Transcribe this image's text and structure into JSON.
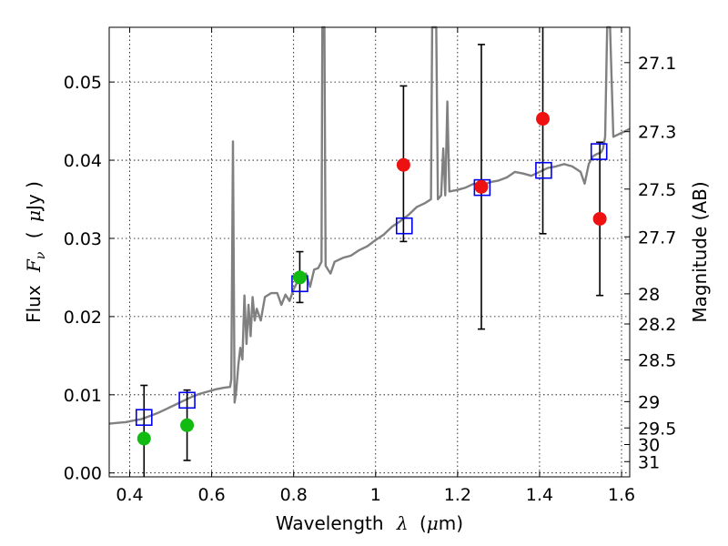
{
  "chart_data": {
    "type": "scatter",
    "xlabel_prefix": "Wavelength",
    "xlabel_symbol": "λ",
    "xlabel_open": "(",
    "xlabel_unit_symbol": "μ",
    "xlabel_unit": "m)",
    "ylabel_prefix": "Flux",
    "ylabel_symbol": "F",
    "ylabel_subscript": "ν",
    "ylabel_open": "(",
    "ylabel_unit_symbol": "μ",
    "ylabel_unit": "Jy )",
    "y2label": "Magnitude (AB)",
    "xlim": [
      0.35,
      1.62
    ],
    "ylim": [
      -0.0005,
      0.057
    ],
    "grid": true,
    "x_ticks": [
      0.4,
      0.6,
      0.8,
      1.0,
      1.2,
      1.4,
      1.6
    ],
    "x_tick_labels": [
      "0.4",
      "0.6",
      "0.8",
      "1",
      "1.2",
      "1.4",
      "1.6"
    ],
    "y_ticks": [
      0.0,
      0.01,
      0.02,
      0.03,
      0.04,
      0.05
    ],
    "y_tick_labels": [
      "0.00",
      "0.01",
      "0.02",
      "0.03",
      "0.04",
      "0.05"
    ],
    "mag_ticks": [
      "27.1",
      "27.3",
      "27.5",
      "27.7",
      "28",
      "28.2",
      "28.5",
      "29",
      "29.5",
      "30",
      "31"
    ],
    "colors": {
      "spectrum": "#808080",
      "model_box": "#0000ee",
      "detect": "#ee1111",
      "optical": "#11bb11",
      "errorbar": "#000000"
    },
    "spectrum": [
      [
        0.35,
        0.0063
      ],
      [
        0.37,
        0.0064
      ],
      [
        0.39,
        0.0065
      ],
      [
        0.41,
        0.0067
      ],
      [
        0.43,
        0.0069
      ],
      [
        0.45,
        0.0073
      ],
      [
        0.47,
        0.0077
      ],
      [
        0.49,
        0.0082
      ],
      [
        0.51,
        0.0087
      ],
      [
        0.53,
        0.0092
      ],
      [
        0.55,
        0.0097
      ],
      [
        0.57,
        0.0101
      ],
      [
        0.59,
        0.0104
      ],
      [
        0.61,
        0.0107
      ],
      [
        0.63,
        0.0109
      ],
      [
        0.645,
        0.011
      ],
      [
        0.648,
        0.012
      ],
      [
        0.652,
        0.0424
      ],
      [
        0.656,
        0.009
      ],
      [
        0.66,
        0.0105
      ],
      [
        0.665,
        0.0138
      ],
      [
        0.67,
        0.016
      ],
      [
        0.675,
        0.0145
      ],
      [
        0.68,
        0.0227
      ],
      [
        0.685,
        0.0165
      ],
      [
        0.69,
        0.0215
      ],
      [
        0.695,
        0.0175
      ],
      [
        0.7,
        0.0225
      ],
      [
        0.705,
        0.0195
      ],
      [
        0.71,
        0.021
      ],
      [
        0.72,
        0.0195
      ],
      [
        0.73,
        0.0225
      ],
      [
        0.745,
        0.023
      ],
      [
        0.76,
        0.023
      ],
      [
        0.77,
        0.0215
      ],
      [
        0.78,
        0.0228
      ],
      [
        0.79,
        0.022
      ],
      [
        0.8,
        0.0235
      ],
      [
        0.81,
        0.0245
      ],
      [
        0.82,
        0.025
      ],
      [
        0.83,
        0.0255
      ],
      [
        0.84,
        0.0238
      ],
      [
        0.85,
        0.026
      ],
      [
        0.86,
        0.0262
      ],
      [
        0.868,
        0.027
      ],
      [
        0.87,
        0.057
      ],
      [
        0.875,
        0.057
      ],
      [
        0.878,
        0.0265
      ],
      [
        0.89,
        0.0255
      ],
      [
        0.9,
        0.027
      ],
      [
        0.92,
        0.0275
      ],
      [
        0.94,
        0.0278
      ],
      [
        0.96,
        0.0285
      ],
      [
        0.98,
        0.029
      ],
      [
        1.0,
        0.0298
      ],
      [
        1.02,
        0.0305
      ],
      [
        1.04,
        0.0315
      ],
      [
        1.06,
        0.0322
      ],
      [
        1.08,
        0.033
      ],
      [
        1.1,
        0.034
      ],
      [
        1.12,
        0.0345
      ],
      [
        1.135,
        0.035
      ],
      [
        1.138,
        0.057
      ],
      [
        1.148,
        0.057
      ],
      [
        1.152,
        0.035
      ],
      [
        1.16,
        0.0355
      ],
      [
        1.165,
        0.0415
      ],
      [
        1.17,
        0.0355
      ],
      [
        1.175,
        0.0475
      ],
      [
        1.18,
        0.036
      ],
      [
        1.2,
        0.0362
      ],
      [
        1.22,
        0.0365
      ],
      [
        1.24,
        0.037
      ],
      [
        1.26,
        0.0368
      ],
      [
        1.28,
        0.0372
      ],
      [
        1.3,
        0.0374
      ],
      [
        1.32,
        0.0378
      ],
      [
        1.34,
        0.0385
      ],
      [
        1.36,
        0.0383
      ],
      [
        1.38,
        0.038
      ],
      [
        1.4,
        0.0385
      ],
      [
        1.42,
        0.039
      ],
      [
        1.44,
        0.0392
      ],
      [
        1.46,
        0.0395
      ],
      [
        1.48,
        0.0392
      ],
      [
        1.5,
        0.0385
      ],
      [
        1.51,
        0.037
      ],
      [
        1.52,
        0.0395
      ],
      [
        1.53,
        0.0405
      ],
      [
        1.54,
        0.0408
      ],
      [
        1.55,
        0.041
      ],
      [
        1.555,
        0.0415
      ],
      [
        1.56,
        0.043
      ],
      [
        1.565,
        0.057
      ],
      [
        1.572,
        0.057
      ],
      [
        1.58,
        0.043
      ],
      [
        1.6,
        0.0435
      ],
      [
        1.62,
        0.044
      ]
    ],
    "model_boxes": [
      {
        "x": 0.435,
        "y": 0.0071
      },
      {
        "x": 0.54,
        "y": 0.0093
      },
      {
        "x": 0.815,
        "y": 0.0242
      },
      {
        "x": 1.07,
        "y": 0.0316
      },
      {
        "x": 1.26,
        "y": 0.0365
      },
      {
        "x": 1.41,
        "y": 0.0387
      },
      {
        "x": 1.545,
        "y": 0.0411
      }
    ],
    "detections": [
      {
        "x": 1.068,
        "y": 0.0394,
        "err_low": 0.0296,
        "err_high": 0.0495
      },
      {
        "x": 1.258,
        "y": 0.0366,
        "err_low": 0.0184,
        "err_high": 0.0548
      },
      {
        "x": 1.408,
        "y": 0.0453,
        "err_low": 0.0306,
        "err_high": 0.057
      },
      {
        "x": 1.547,
        "y": 0.0325,
        "err_low": 0.0227,
        "err_high": 0.0423
      }
    ],
    "optical": [
      {
        "x": 0.435,
        "y": 0.0044,
        "err_low": -0.0005,
        "err_high": 0.0112
      },
      {
        "x": 0.54,
        "y": 0.0061,
        "err_low": 0.0016,
        "err_high": 0.0106
      },
      {
        "x": 0.815,
        "y": 0.025,
        "err_low": 0.0218,
        "err_high": 0.0283
      }
    ]
  }
}
